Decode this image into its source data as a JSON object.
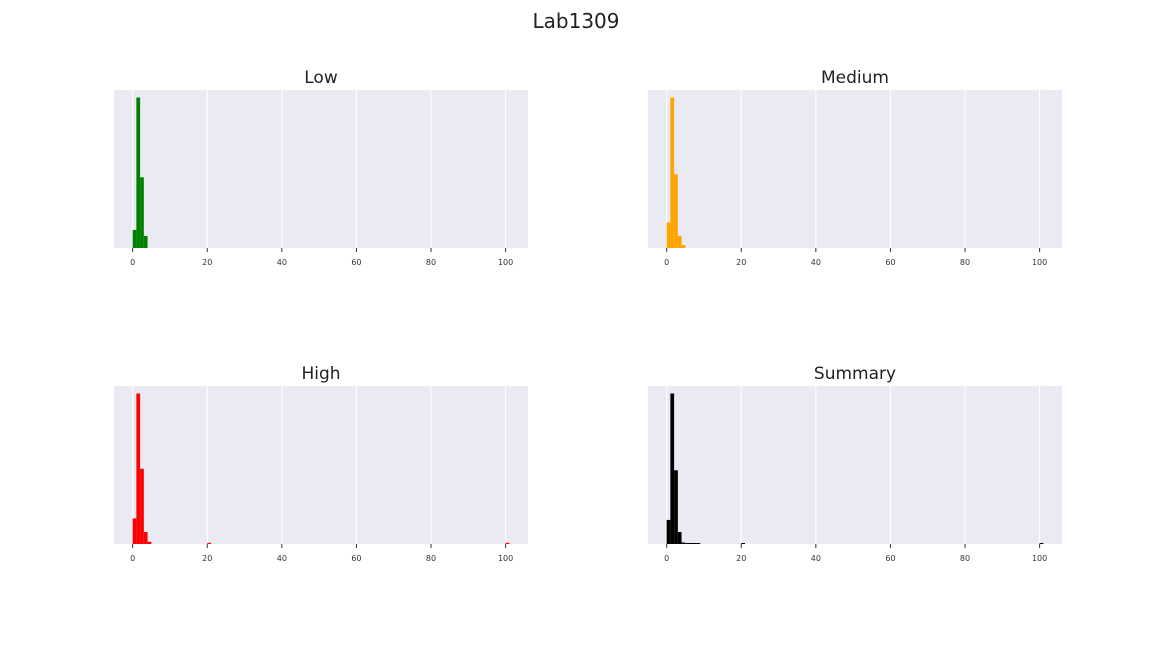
{
  "figure": {
    "title": "Lab1309",
    "colors": {
      "plot_background": "#eaeaf2",
      "grid": "#ffffff",
      "page": "#ffffff"
    }
  },
  "chart_data": [
    {
      "type": "bar",
      "title": "Low",
      "color": "#008000",
      "xlim": [
        -5,
        106
      ],
      "xticks": [
        0,
        20,
        40,
        60,
        80,
        100
      ],
      "ylim": [
        0,
        1.05
      ],
      "grid": true,
      "bin_width": 1,
      "bins": [
        {
          "x": 0,
          "value": 0.12
        },
        {
          "x": 1,
          "value": 1.0
        },
        {
          "x": 2,
          "value": 0.47
        },
        {
          "x": 3,
          "value": 0.08
        }
      ]
    },
    {
      "type": "bar",
      "title": "Medium",
      "color": "#ffa500",
      "xlim": [
        -5,
        106
      ],
      "xticks": [
        0,
        20,
        40,
        60,
        80,
        100
      ],
      "ylim": [
        0,
        1.05
      ],
      "grid": true,
      "bin_width": 1,
      "bins": [
        {
          "x": 0,
          "value": 0.17
        },
        {
          "x": 1,
          "value": 1.0
        },
        {
          "x": 2,
          "value": 0.49
        },
        {
          "x": 3,
          "value": 0.08
        },
        {
          "x": 4,
          "value": 0.02
        }
      ]
    },
    {
      "type": "bar",
      "title": "High",
      "color": "#ff0000",
      "xlim": [
        -5,
        106
      ],
      "xticks": [
        0,
        20,
        40,
        60,
        80,
        100
      ],
      "ylim": [
        0,
        1.05
      ],
      "grid": true,
      "bin_width": 1,
      "bins": [
        {
          "x": 0,
          "value": 0.17
        },
        {
          "x": 1,
          "value": 1.0
        },
        {
          "x": 2,
          "value": 0.5
        },
        {
          "x": 3,
          "value": 0.08
        },
        {
          "x": 4,
          "value": 0.015
        },
        {
          "x": 20,
          "value": 0.008
        },
        {
          "x": 100,
          "value": 0.008
        }
      ]
    },
    {
      "type": "bar",
      "title": "Summary",
      "color": "#000000",
      "xlim": [
        -5,
        106
      ],
      "xticks": [
        0,
        20,
        40,
        60,
        80,
        100
      ],
      "ylim": [
        0,
        1.05
      ],
      "grid": true,
      "bin_width": 1,
      "bins": [
        {
          "x": 0,
          "value": 0.16
        },
        {
          "x": 1,
          "value": 1.0
        },
        {
          "x": 2,
          "value": 0.49
        },
        {
          "x": 3,
          "value": 0.08
        },
        {
          "x": 4,
          "value": 0.01
        },
        {
          "x": 5,
          "value": 0.006
        },
        {
          "x": 6,
          "value": 0.005
        },
        {
          "x": 7,
          "value": 0.004
        },
        {
          "x": 8,
          "value": 0.003
        },
        {
          "x": 20,
          "value": 0.006
        },
        {
          "x": 100,
          "value": 0.006
        }
      ]
    }
  ]
}
